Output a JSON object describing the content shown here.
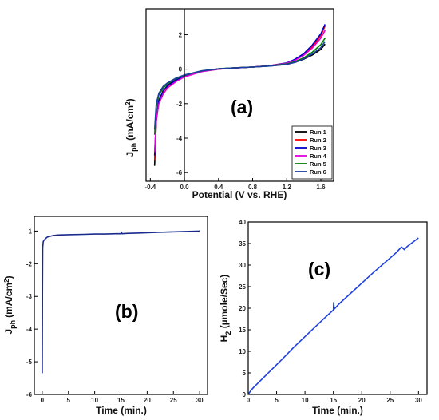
{
  "chart_data": [
    {
      "panel": "(a)",
      "type": "line",
      "xlabel": "Potential (V vs. RHE)",
      "ylabel_main": "J",
      "ylabel_sub": "ph",
      "ylabel_unit": "(mA/cm",
      "ylabel_sup": "2",
      "ylabel_end": ")",
      "xlim": [
        -0.45,
        1.75
      ],
      "ylim": [
        -6.5,
        3.5
      ],
      "xticks": [
        -0.4,
        0,
        0.4,
        0.8,
        1.2,
        1.6
      ],
      "xtick_labels": [
        "-0.4",
        "0.0",
        "0.4",
        "0.8",
        "1.2",
        "1.6"
      ],
      "yticks": [
        -6,
        -4,
        -2,
        0,
        2
      ],
      "legend_position": "bottom-right",
      "series": [
        {
          "name": "Run 1",
          "color": "#000000",
          "x": [
            -0.35,
            -0.33,
            -0.3,
            -0.25,
            -0.2,
            -0.1,
            0.0,
            0.2,
            0.4,
            0.6,
            0.8,
            1.0,
            1.2,
            1.3,
            1.4,
            1.5,
            1.6,
            1.65
          ],
          "y": [
            -5.6,
            -3.0,
            -1.9,
            -1.3,
            -0.95,
            -0.6,
            -0.38,
            -0.12,
            0.02,
            0.08,
            0.12,
            0.18,
            0.28,
            0.4,
            0.58,
            0.82,
            1.15,
            1.45
          ]
        },
        {
          "name": "Run 2",
          "color": "#ff0000",
          "x": [
            -0.35,
            -0.33,
            -0.3,
            -0.25,
            -0.2,
            -0.1,
            0.0,
            0.2,
            0.4,
            0.6,
            0.8,
            1.0,
            1.2,
            1.3,
            1.4,
            1.5,
            1.6,
            1.65
          ],
          "y": [
            -5.3,
            -2.9,
            -1.85,
            -1.3,
            -1.0,
            -0.65,
            -0.42,
            -0.14,
            0.0,
            0.07,
            0.12,
            0.2,
            0.35,
            0.55,
            0.85,
            1.3,
            1.95,
            2.5
          ]
        },
        {
          "name": "Run 3",
          "color": "#0000cc",
          "x": [
            -0.35,
            -0.33,
            -0.3,
            -0.25,
            -0.2,
            -0.1,
            0.0,
            0.2,
            0.4,
            0.6,
            0.8,
            1.0,
            1.2,
            1.3,
            1.4,
            1.5,
            1.6,
            1.65
          ],
          "y": [
            -5.0,
            -2.8,
            -1.8,
            -1.25,
            -0.98,
            -0.64,
            -0.41,
            -0.13,
            0.01,
            0.07,
            0.12,
            0.2,
            0.36,
            0.58,
            0.9,
            1.4,
            2.05,
            2.6
          ]
        },
        {
          "name": "Run 4",
          "color": "#e000e0",
          "x": [
            -0.35,
            -0.33,
            -0.3,
            -0.25,
            -0.2,
            -0.1,
            0.0,
            0.2,
            0.4,
            0.6,
            0.8,
            1.0,
            1.2,
            1.3,
            1.4,
            1.5,
            1.6,
            1.65
          ],
          "y": [
            -4.8,
            -2.9,
            -2.0,
            -1.45,
            -1.1,
            -0.72,
            -0.45,
            -0.15,
            0.0,
            0.07,
            0.12,
            0.2,
            0.34,
            0.52,
            0.8,
            1.22,
            1.8,
            2.25
          ]
        },
        {
          "name": "Run 5",
          "color": "#008000",
          "x": [
            -0.35,
            -0.33,
            -0.3,
            -0.25,
            -0.2,
            -0.1,
            0.0,
            0.2,
            0.4,
            0.6,
            0.8,
            1.0,
            1.2,
            1.3,
            1.4,
            1.5,
            1.6,
            1.65
          ],
          "y": [
            -3.8,
            -2.2,
            -1.5,
            -1.1,
            -0.85,
            -0.55,
            -0.35,
            -0.1,
            0.02,
            0.08,
            0.12,
            0.19,
            0.3,
            0.44,
            0.66,
            0.98,
            1.42,
            1.8
          ]
        },
        {
          "name": "Run 6",
          "color": "#1a3fa0",
          "x": [
            -0.35,
            -0.33,
            -0.3,
            -0.25,
            -0.2,
            -0.1,
            0.0,
            0.2,
            0.4,
            0.6,
            0.8,
            1.0,
            1.2,
            1.3,
            1.4,
            1.5,
            1.6,
            1.65
          ],
          "y": [
            -3.5,
            -2.0,
            -1.4,
            -1.0,
            -0.8,
            -0.52,
            -0.34,
            -0.1,
            0.02,
            0.08,
            0.12,
            0.18,
            0.28,
            0.4,
            0.6,
            0.88,
            1.25,
            1.6
          ]
        }
      ]
    },
    {
      "panel": "(b)",
      "type": "line",
      "xlabel": "Time (min.)",
      "ylabel_main": "J",
      "ylabel_sub": "ph",
      "ylabel_unit": "(mA/cm",
      "ylabel_sup": "2",
      "ylabel_end": ")",
      "xlim": [
        -1.5,
        31.5
      ],
      "ylim": [
        -6,
        -0.55
      ],
      "xticks": [
        0,
        5,
        10,
        15,
        20,
        25,
        30
      ],
      "xtick_labels": [
        "0",
        "5",
        "10",
        "15",
        "20",
        "25",
        "30"
      ],
      "yticks": [
        -6,
        -5,
        -4,
        -3,
        -2,
        -1
      ],
      "series": [
        {
          "name": "",
          "color": "#1a2a8c",
          "x": [
            0,
            0.05,
            0.1,
            0.2,
            0.4,
            0.7,
            1,
            2,
            3,
            5,
            8,
            10,
            12,
            14,
            15,
            15.1,
            15.2,
            16,
            18,
            20,
            22,
            24,
            26,
            28,
            30
          ],
          "y": [
            -5.35,
            -3.0,
            -1.5,
            -1.32,
            -1.27,
            -1.22,
            -1.18,
            -1.14,
            -1.12,
            -1.11,
            -1.1,
            -1.09,
            -1.09,
            -1.08,
            -1.08,
            -1.03,
            -1.08,
            -1.07,
            -1.06,
            -1.05,
            -1.04,
            -1.03,
            -1.02,
            -1.01,
            -1.0
          ]
        }
      ]
    },
    {
      "panel": "(c)",
      "type": "line",
      "xlabel": "Time (min.)",
      "ylabel_main": "H",
      "ylabel_sub": "2",
      "ylabel_unit": " (µmole/Sec)",
      "ylabel_sup": "",
      "ylabel_end": "",
      "xlim": [
        0,
        31.5
      ],
      "ylim": [
        0,
        40
      ],
      "xticks": [
        0,
        5,
        10,
        15,
        20,
        25,
        30
      ],
      "xtick_labels": [
        "0",
        "5",
        "10",
        "15",
        "20",
        "25",
        "30"
      ],
      "yticks": [
        0,
        5,
        10,
        15,
        20,
        25,
        30,
        35,
        40
      ],
      "series": [
        {
          "name": "",
          "color": "#2040dd",
          "x": [
            0,
            0.5,
            1,
            2,
            4,
            6,
            8,
            10,
            12,
            14,
            15,
            15.05,
            15.15,
            15.3,
            16,
            18,
            20,
            22,
            24,
            26,
            27,
            27.5,
            28,
            29,
            30
          ],
          "y": [
            0,
            1.0,
            1.7,
            3.0,
            5.6,
            8.2,
            10.9,
            13.4,
            15.9,
            18.4,
            19.6,
            21.3,
            19.8,
            20.0,
            21.0,
            23.4,
            25.8,
            28.2,
            30.5,
            32.8,
            34.2,
            33.6,
            34.3,
            35.3,
            36.3
          ]
        }
      ]
    }
  ]
}
